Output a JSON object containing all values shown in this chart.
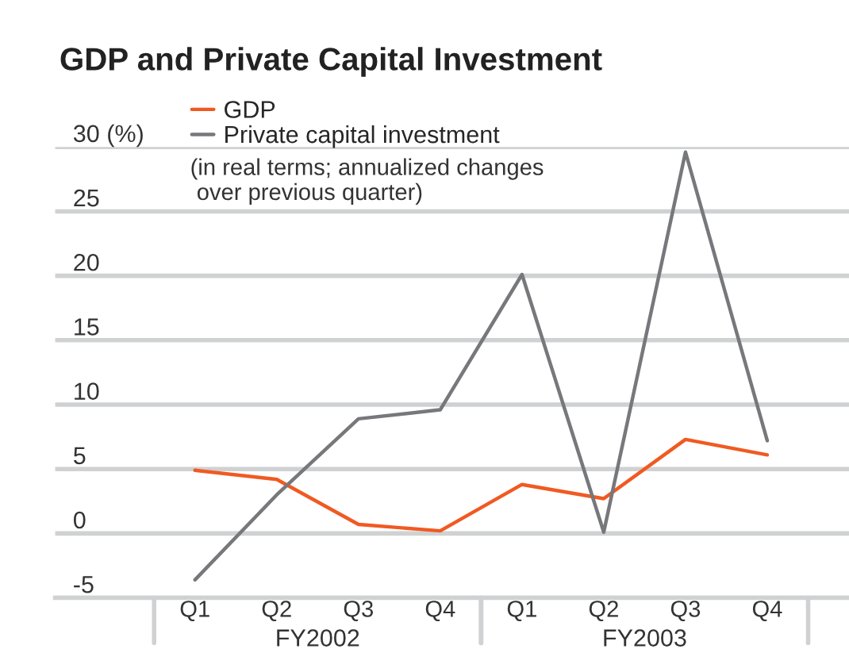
{
  "chart_data": {
    "type": "line",
    "title": "GDP and Private Capital Investment",
    "categories": [
      "Q1",
      "Q2",
      "Q3",
      "Q4",
      "Q1",
      "Q2",
      "Q3",
      "Q4"
    ],
    "series": [
      {
        "name": "GDP",
        "color": "#f05a22",
        "values": [
          4.9,
          4.2,
          0.7,
          0.2,
          3.8,
          2.7,
          7.3,
          6.1
        ]
      },
      {
        "name": "Private capital investment",
        "color": "#77787b",
        "values": [
          -3.6,
          3.0,
          8.9,
          9.6,
          20.1,
          0.1,
          29.6,
          7.2
        ]
      }
    ],
    "ylim": [
      -5,
      30
    ],
    "yticks": [
      -5,
      0,
      5,
      10,
      15,
      20,
      25,
      {
        "value": 30,
        "label": "30 (%)"
      }
    ],
    "grid": "y",
    "legend": "top left",
    "marker": "none",
    "line_style": "solid",
    "annotations": [
      "(in real terms; annualized changes\n over previous quarter)",
      "FY2002",
      "FY2003"
    ]
  }
}
